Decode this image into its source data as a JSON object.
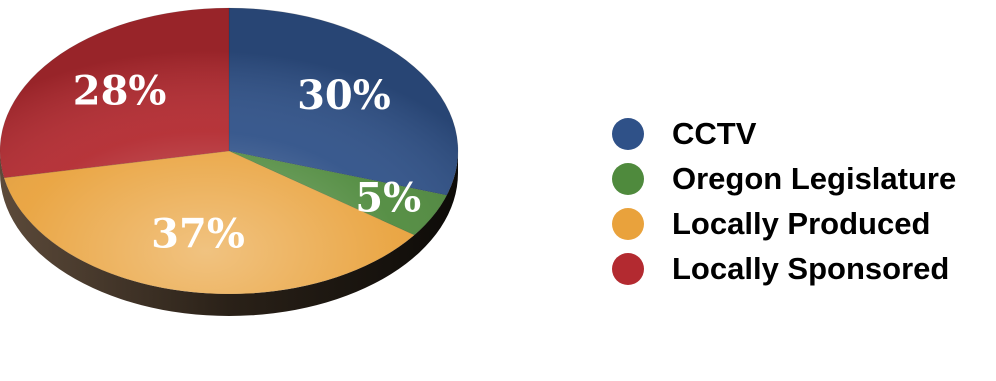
{
  "chart_data": {
    "type": "pie",
    "title": "",
    "legend_position": "right",
    "slices": [
      {
        "label": "CCTV",
        "value": 30,
        "value_label": "30%",
        "color": "#2f5188"
      },
      {
        "label": "Oregon Legislature",
        "value": 5,
        "value_label": "5%",
        "color": "#4f8a3d"
      },
      {
        "label": "Locally Produced",
        "value": 37,
        "value_label": "37%",
        "color": "#e9a23c"
      },
      {
        "label": "Locally Sponsored",
        "value": 28,
        "value_label": "28%",
        "color": "#b32a30"
      }
    ]
  }
}
